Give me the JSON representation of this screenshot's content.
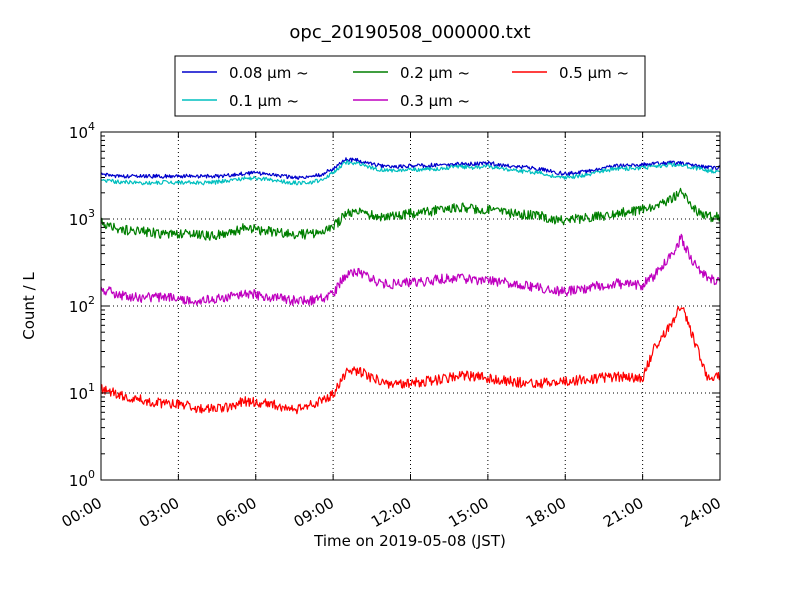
{
  "chart_data": {
    "type": "line",
    "title": "opc_20190508_000000.txt",
    "xlabel": "Time on 2019-05-08 (JST)",
    "ylabel": "Count / L",
    "yscale": "log",
    "ylim": [
      1,
      10000
    ],
    "xlim": [
      0,
      24
    ],
    "grid": true,
    "legend_position": "top-center",
    "x_tick_labels": [
      "00:00",
      "03:00",
      "06:00",
      "09:00",
      "12:00",
      "15:00",
      "18:00",
      "21:00",
      "24:00"
    ],
    "y_tick_labels": [
      {
        "base": "10",
        "exp": "0"
      },
      {
        "base": "10",
        "exp": "1"
      },
      {
        "base": "10",
        "exp": "2"
      },
      {
        "base": "10",
        "exp": "3"
      },
      {
        "base": "10",
        "exp": "4"
      }
    ],
    "x": [
      0,
      0.5,
      1,
      1.5,
      2,
      2.5,
      3,
      3.5,
      4,
      4.5,
      5,
      5.5,
      6,
      6.5,
      7,
      7.5,
      8,
      8.5,
      9,
      9.5,
      10,
      10.5,
      11,
      11.5,
      12,
      12.5,
      13,
      13.5,
      14,
      14.5,
      15,
      15.5,
      16,
      16.5,
      17,
      17.5,
      18,
      18.5,
      19,
      19.5,
      20,
      20.5,
      21,
      21.5,
      22,
      22.5,
      23,
      23.5,
      24
    ],
    "series": [
      {
        "name": "0.08 μm ~",
        "color": "#0000cc",
        "values": [
          3200,
          3150,
          3100,
          3100,
          3100,
          3100,
          3100,
          3100,
          3100,
          3100,
          3200,
          3300,
          3400,
          3300,
          3100,
          3000,
          3000,
          3200,
          3800,
          4900,
          4700,
          4300,
          4000,
          4000,
          4100,
          4100,
          4200,
          4200,
          4300,
          4300,
          4400,
          4200,
          4000,
          3900,
          3800,
          3500,
          3300,
          3400,
          3600,
          3900,
          4100,
          4100,
          4200,
          4300,
          4400,
          4400,
          4100,
          3900,
          3900
        ]
      },
      {
        "name": "0.1 μm ~",
        "color": "#00bfbf",
        "values": [
          2800,
          2700,
          2650,
          2600,
          2600,
          2650,
          2650,
          2600,
          2600,
          2650,
          2800,
          2900,
          2950,
          2850,
          2700,
          2600,
          2600,
          2800,
          3400,
          4500,
          4300,
          3900,
          3600,
          3600,
          3700,
          3700,
          3800,
          3900,
          4000,
          3900,
          4000,
          3800,
          3600,
          3500,
          3400,
          3150,
          3000,
          3100,
          3300,
          3600,
          3800,
          3800,
          3900,
          4000,
          4200,
          4200,
          3900,
          3600,
          3500
        ]
      },
      {
        "name": "0.2 μm ~",
        "color": "#007f00",
        "values": [
          900,
          800,
          750,
          720,
          690,
          680,
          670,
          660,
          640,
          650,
          680,
          780,
          760,
          720,
          690,
          670,
          670,
          700,
          800,
          1150,
          1200,
          1100,
          1080,
          1100,
          1150,
          1200,
          1250,
          1300,
          1350,
          1300,
          1300,
          1250,
          1150,
          1100,
          1100,
          1000,
          950,
          1000,
          1050,
          1100,
          1200,
          1200,
          1300,
          1400,
          1600,
          2000,
          1300,
          1050,
          1050
        ]
      },
      {
        "name": "0.3 μm ~",
        "color": "#bf00bf",
        "values": [
          160,
          140,
          130,
          125,
          125,
          125,
          120,
          115,
          115,
          120,
          125,
          140,
          135,
          125,
          120,
          115,
          115,
          120,
          140,
          230,
          250,
          200,
          180,
          180,
          190,
          190,
          200,
          210,
          210,
          200,
          200,
          190,
          180,
          170,
          165,
          150,
          145,
          155,
          165,
          175,
          180,
          175,
          175,
          230,
          350,
          600,
          300,
          210,
          190
        ]
      },
      {
        "name": "0.5 μm ~",
        "color": "#ff0000",
        "values": [
          11,
          10,
          9,
          8.5,
          8,
          7.5,
          7.5,
          7,
          6.5,
          6.5,
          7,
          8,
          8,
          7.5,
          7,
          6.5,
          7,
          8,
          9.5,
          17,
          18,
          15,
          13,
          12.5,
          13,
          13.5,
          14,
          15,
          16,
          15.5,
          15,
          14,
          13.5,
          13,
          13,
          13,
          13.5,
          14,
          14.5,
          15,
          15.5,
          15,
          15,
          35,
          55,
          105,
          40,
          16,
          15
        ]
      }
    ]
  }
}
